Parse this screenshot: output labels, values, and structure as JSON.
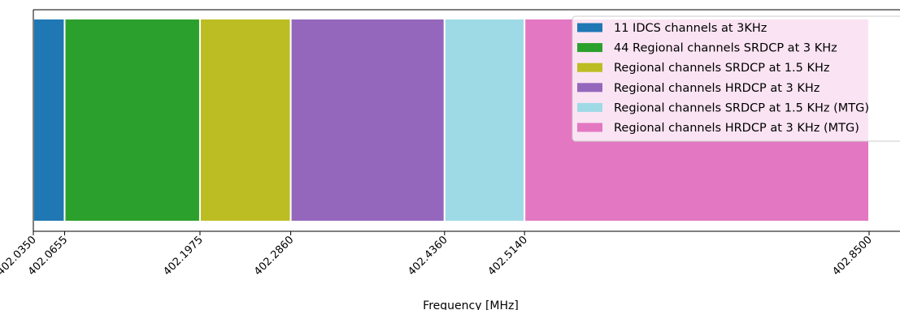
{
  "chart_data": {
    "type": "bar",
    "orientation": "horizontal-stacked-bands",
    "xlabel": "Frequency [MHz]",
    "ylabel": "",
    "title": "",
    "grid": false,
    "legend_position": "top-right",
    "xlim": [
      402.035,
      402.85
    ],
    "ticks": [
      "402.0350",
      "402.0655",
      "402.1975",
      "402.2860",
      "402.4360",
      "402.5140",
      "402.8500"
    ],
    "series": [
      {
        "name": "11 IDCS channels at 3KHz",
        "start": 402.035,
        "end": 402.0655,
        "color": "#1f77b4"
      },
      {
        "name": "44 Regional channels SRDCP at 3 KHz",
        "start": 402.0655,
        "end": 402.1975,
        "color": "#2ca02c"
      },
      {
        "name": "Regional channels SRDCP at 1.5 KHz",
        "start": 402.1975,
        "end": 402.286,
        "color": "#bcbd22"
      },
      {
        "name": "Regional channels HRDCP at 3 KHz",
        "start": 402.286,
        "end": 402.436,
        "color": "#9467bd"
      },
      {
        "name": "Regional channels SRDCP at 1.5 KHz (MTG)",
        "start": 402.436,
        "end": 402.514,
        "color": "#9edae5"
      },
      {
        "name": "Regional channels HRDCP at 3 KHz (MTG)",
        "start": 402.514,
        "end": 402.85,
        "color": "#e377c2"
      }
    ]
  }
}
